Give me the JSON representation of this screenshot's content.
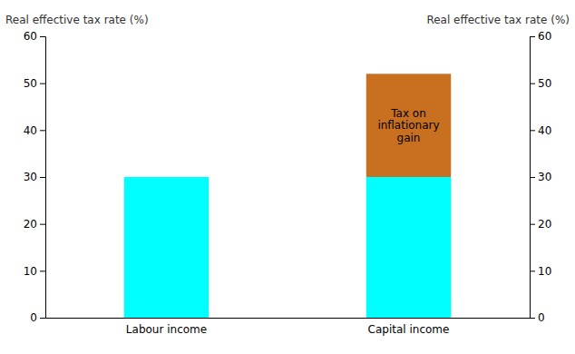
{
  "chart_data": {
    "type": "bar",
    "stacked": true,
    "categories": [
      "Labour income",
      "Capital income"
    ],
    "series": [
      {
        "color": "#00FFFF",
        "values": [
          30,
          30
        ]
      },
      {
        "color": "#C87020",
        "values": [
          0,
          22
        ]
      }
    ],
    "ylabel": "Real effective tax rate (%)",
    "y2label": "Real effective tax rate (%)",
    "ylim": [
      0,
      60
    ],
    "yticks": [
      0,
      10,
      20,
      30,
      40,
      50,
      60
    ],
    "y2lim": [
      0,
      60
    ],
    "y2ticks": [
      0,
      10,
      20,
      30,
      40,
      50,
      60
    ],
    "annotations": [
      {
        "text": "Tax on\ninflationary\ngain",
        "x": "Capital income",
        "y": 41
      }
    ],
    "grid": false
  }
}
